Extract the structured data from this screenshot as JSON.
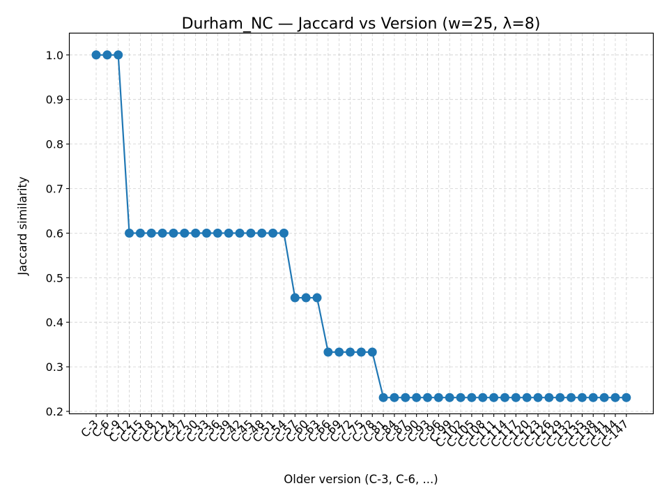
{
  "chart_data": {
    "type": "line",
    "title": "Durham_NC — Jaccard vs Version (w=25, λ=8)",
    "xlabel": "Older version (C-3, C-6, ...)",
    "ylabel": "Jaccard similarity",
    "ylim": [
      0.19,
      1.035
    ],
    "yticks": [
      0.2,
      0.3,
      0.4,
      0.5,
      0.6,
      0.7,
      0.8,
      0.9,
      1.0
    ],
    "ytick_labels": [
      "0.2",
      "0.3",
      "0.4",
      "0.5",
      "0.6",
      "0.7",
      "0.8",
      "0.9",
      "1.0"
    ],
    "grid": true,
    "color": "#1f77b4",
    "marker": "circle",
    "categories": [
      "C-3",
      "C-6",
      "C-9",
      "C-12",
      "C-15",
      "C-18",
      "C-21",
      "C-24",
      "C-27",
      "C-30",
      "C-33",
      "C-36",
      "C-39",
      "C-42",
      "C-45",
      "C-48",
      "C-51",
      "C-54",
      "C-57",
      "C-60",
      "C-63",
      "C-66",
      "C-69",
      "C-72",
      "C-75",
      "C-78",
      "C-81",
      "C-84",
      "C-87",
      "C-90",
      "C-93",
      "C-96",
      "C-99",
      "C-102",
      "C-105",
      "C-108",
      "C-111",
      "C-114",
      "C-117",
      "C-120",
      "C-123",
      "C-126",
      "C-129",
      "C-132",
      "C-135",
      "C-138",
      "C-141",
      "C-144",
      "C-147"
    ],
    "values": [
      1.0,
      1.0,
      1.0,
      0.6,
      0.6,
      0.6,
      0.6,
      0.6,
      0.6,
      0.6,
      0.6,
      0.6,
      0.6,
      0.6,
      0.6,
      0.6,
      0.6,
      0.6,
      0.455,
      0.455,
      0.455,
      0.333,
      0.333,
      0.333,
      0.333,
      0.333,
      0.231,
      0.231,
      0.231,
      0.231,
      0.231,
      0.231,
      0.231,
      0.231,
      0.231,
      0.231,
      0.231,
      0.231,
      0.231,
      0.231,
      0.231,
      0.231,
      0.231,
      0.231,
      0.231,
      0.231,
      0.231,
      0.231,
      0.231
    ]
  }
}
